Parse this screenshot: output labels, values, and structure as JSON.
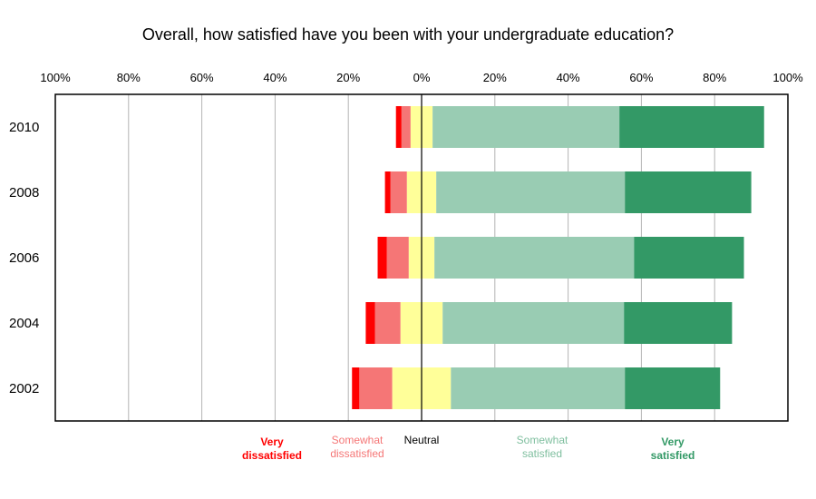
{
  "chart_data": {
    "type": "bar",
    "orientation": "horizontal",
    "stacked": "diverging",
    "title": "Overall, how satisfied have you been with your undergraduate education?",
    "categories": [
      "2010",
      "2008",
      "2006",
      "2004",
      "2002"
    ],
    "xlim": [
      -100,
      100
    ],
    "x_ticks": [
      "100%",
      "80%",
      "60%",
      "40%",
      "20%",
      "0%",
      "20%",
      "40%",
      "60%",
      "80%",
      "100%"
    ],
    "x_tick_values": [
      -100,
      -80,
      -60,
      -40,
      -20,
      0,
      20,
      40,
      60,
      80,
      100
    ],
    "grid": true,
    "series": [
      {
        "name": "Very dissatisfied",
        "legend_label": [
          "Very",
          "dissatisfied"
        ],
        "color": "#ff0000",
        "legend_color": "#ff0000",
        "bold": true,
        "side": "negative",
        "values": [
          1.5,
          1.5,
          2.5,
          2.5,
          2.0
        ]
      },
      {
        "name": "Somewhat dissatisfied",
        "legend_label": [
          "Somewhat",
          "dissatisfied"
        ],
        "color": "#f57676",
        "legend_color": "#f57676",
        "bold": false,
        "side": "negative",
        "values": [
          2.5,
          4.5,
          6.0,
          7.0,
          9.0
        ]
      },
      {
        "name": "Neutral",
        "legend_label": [
          "Neutral"
        ],
        "color": "#ffff99",
        "legend_color": "#000000",
        "bold": false,
        "side": "split",
        "values": [
          6.0,
          8.0,
          7.0,
          11.5,
          16.0
        ]
      },
      {
        "name": "Somewhat satisfied",
        "legend_label": [
          "Somewhat",
          "satisfied"
        ],
        "color": "#99ccb3",
        "legend_color": "#7fbf9f",
        "bold": false,
        "side": "positive",
        "values": [
          51.0,
          51.5,
          54.5,
          49.5,
          47.5
        ]
      },
      {
        "name": "Very satisfied",
        "legend_label": [
          "Very",
          "satisfied"
        ],
        "color": "#339966",
        "legend_color": "#339966",
        "bold": true,
        "side": "positive",
        "values": [
          39.5,
          34.5,
          30.0,
          29.5,
          26.0
        ]
      }
    ]
  }
}
